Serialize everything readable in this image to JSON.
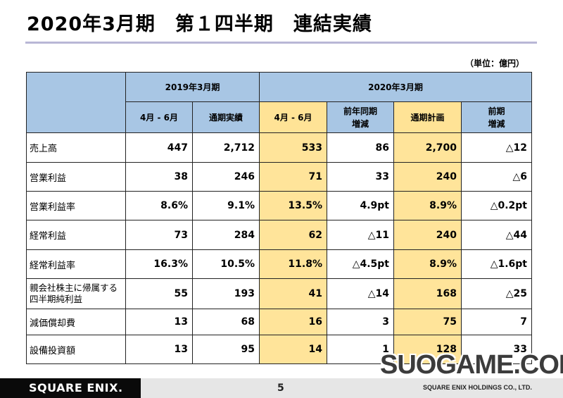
{
  "title": "2020年3月期　第１四半期　連結実績",
  "unit": "（単位：億円）",
  "table": {
    "group_fy2019": "2019年3月期",
    "group_fy2020": "2020年3月期",
    "columns": [
      "4月 - 6月",
      "通期実績",
      "4月 - 6月",
      "前年同期\n増減",
      "通期計画",
      "前期\n増減"
    ],
    "rows": [
      {
        "label": "売上高",
        "values": [
          "447",
          "2,712",
          "533",
          "86",
          "2,700",
          "△12"
        ]
      },
      {
        "label": "営業利益",
        "values": [
          "38",
          "246",
          "71",
          "33",
          "240",
          "△6"
        ]
      },
      {
        "label": "営業利益率",
        "values": [
          "8.6%",
          "9.1%",
          "13.5%",
          "4.9pt",
          "8.9%",
          "△0.2pt"
        ]
      },
      {
        "label": "経常利益",
        "values": [
          "73",
          "284",
          "62",
          "△11",
          "240",
          "△44"
        ]
      },
      {
        "label": "経常利益率",
        "values": [
          "16.3%",
          "10.5%",
          "11.8%",
          "△4.5pt",
          "8.9%",
          "△1.6pt"
        ]
      },
      {
        "label": "親会社株主に帰属する四半期純利益",
        "values": [
          "55",
          "193",
          "41",
          "△14",
          "168",
          "△25"
        ]
      },
      {
        "label": "減価償却費",
        "values": [
          "13",
          "68",
          "16",
          "3",
          "75",
          "7"
        ]
      },
      {
        "label": "設備投資額",
        "values": [
          "13",
          "95",
          "14",
          "1",
          "128",
          "33"
        ]
      }
    ]
  },
  "footer": {
    "logo": "SQUARE ENIX.",
    "page": "5",
    "company": "SQUARE ENIX HOLDINGS CO., LTD."
  },
  "watermark": "SUOGAME.COM"
}
